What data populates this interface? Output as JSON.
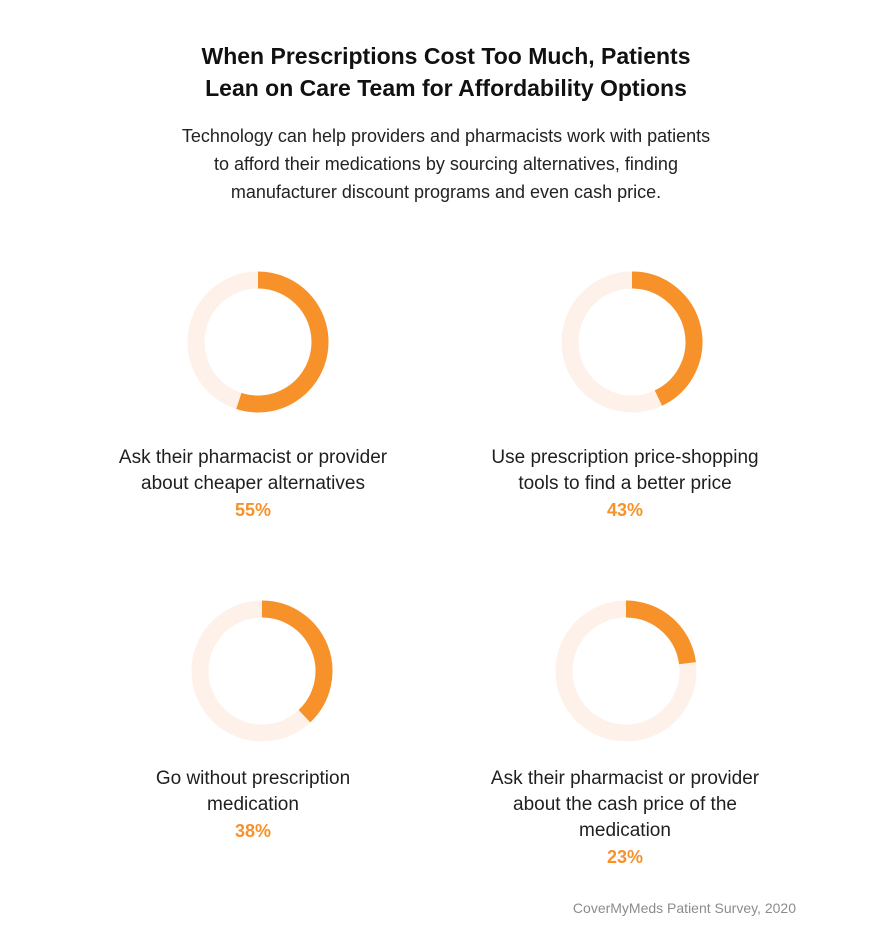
{
  "title": {
    "line1": "When Prescriptions Cost Too Much, Patients",
    "line2": "Lean on Care Team for Affordability Options"
  },
  "subtitle": {
    "line1": "Technology can help providers and pharmacists work with patients",
    "line2": "to afford their medications by sourcing alternatives, finding",
    "line3": "manufacturer discount programs and even cash price."
  },
  "colors": {
    "accent": "#f7922a",
    "track": "#fdf1ea"
  },
  "chart_data": {
    "type": "donut",
    "title": "When Prescriptions Cost Too Much, Patients Lean on Care Team for Affordability Options",
    "unit": "%",
    "items": [
      {
        "label_lines": [
          "Ask their pharmacist or provider",
          "about cheaper alternatives"
        ],
        "value": 55,
        "display": "55%"
      },
      {
        "label_lines": [
          "Use prescription price-shopping",
          "tools to find a better price"
        ],
        "value": 43,
        "display": "43%"
      },
      {
        "label_lines": [
          "Go without prescription",
          "medication"
        ],
        "value": 38,
        "display": "38%"
      },
      {
        "label_lines": [
          "Ask their pharmacist or provider",
          "about the cash price of the",
          "medication"
        ],
        "value": 23,
        "display": "23%"
      }
    ]
  },
  "source": "CoverMyMeds Patient Survey, 2020"
}
